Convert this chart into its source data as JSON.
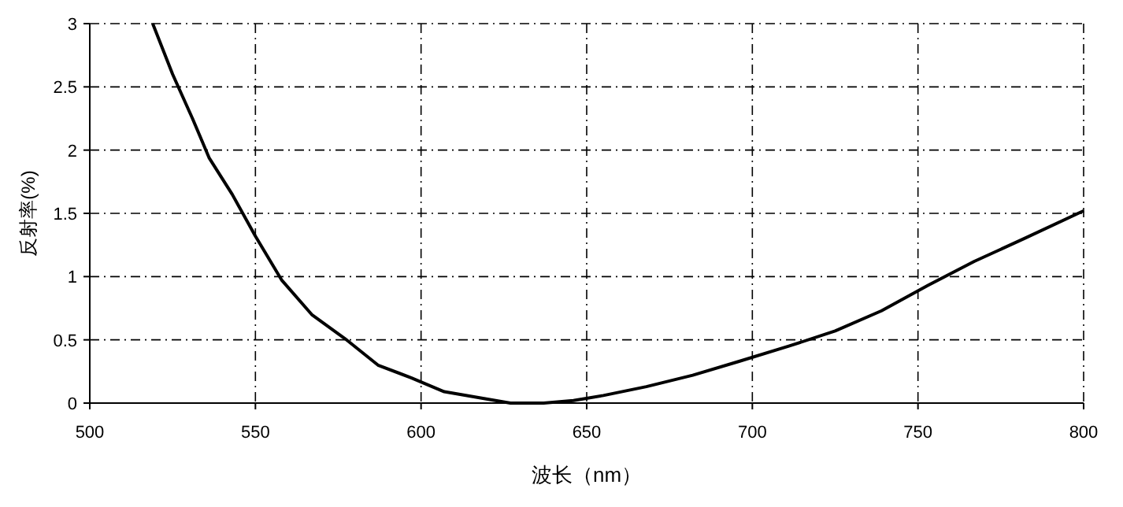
{
  "chart_data": {
    "type": "line",
    "xlabel": "波长（nm）",
    "ylabel": "反射率(%)",
    "xlim": [
      500,
      800
    ],
    "ylim": [
      0,
      3
    ],
    "xticks": [
      500,
      550,
      600,
      650,
      700,
      750,
      800
    ],
    "yticks": [
      0,
      0.5,
      1,
      1.5,
      2,
      2.5,
      3
    ],
    "grid": true,
    "line_style": "solid",
    "marker": "none",
    "series": [
      {
        "color": "#000000",
        "x": [
          519,
          525,
          531,
          536,
          543,
          550,
          558,
          567,
          577,
          587,
          597,
          607,
          618,
          627,
          637,
          646,
          655,
          668,
          682,
          696,
          711,
          725,
          739,
          753,
          767,
          782,
          800
        ],
        "values": [
          3,
          2.6,
          2.25,
          1.94,
          1.65,
          1.32,
          0.97,
          0.7,
          0.51,
          0.3,
          0.2,
          0.09,
          0.04,
          0,
          0,
          0.02,
          0.06,
          0.13,
          0.22,
          0.33,
          0.45,
          0.57,
          0.73,
          0.93,
          1.12,
          1.3,
          1.52
        ]
      }
    ]
  }
}
